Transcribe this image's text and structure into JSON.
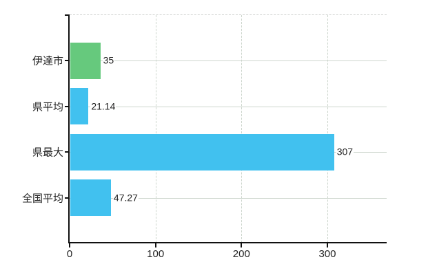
{
  "chart_data": {
    "type": "bar",
    "orientation": "horizontal",
    "title": "",
    "categories": [
      "伊達市",
      "県平均",
      "県最大",
      "全国平均"
    ],
    "values": [
      35,
      21.14,
      307,
      47.27
    ],
    "value_labels": [
      "35",
      "21.14",
      "307",
      "47.27"
    ],
    "series": [
      {
        "name": "",
        "values": [
          35,
          21.14,
          307,
          47.27
        ]
      }
    ],
    "x_ticks": [
      0,
      100,
      200,
      300
    ],
    "x_tick_labels": [
      "0",
      "100",
      "200",
      "300"
    ],
    "xlim": [
      0,
      369
    ],
    "grid": {
      "vertical_gridlines": "dashed",
      "horizontal_gridlines": "solid",
      "top_border": "dashed"
    },
    "legend": null,
    "colors": {
      "bar_colors": [
        "#66c97d",
        "#41c1ef",
        "#41c1ef",
        "#41c1ef"
      ],
      "bar_default": "#41c1ef",
      "bar_highlight": "#66c97d",
      "gridline": "#ccd5cc",
      "top_border": "#cfd2cf",
      "axis": "#111111",
      "text": "#222222",
      "background": "#ffffff"
    }
  }
}
